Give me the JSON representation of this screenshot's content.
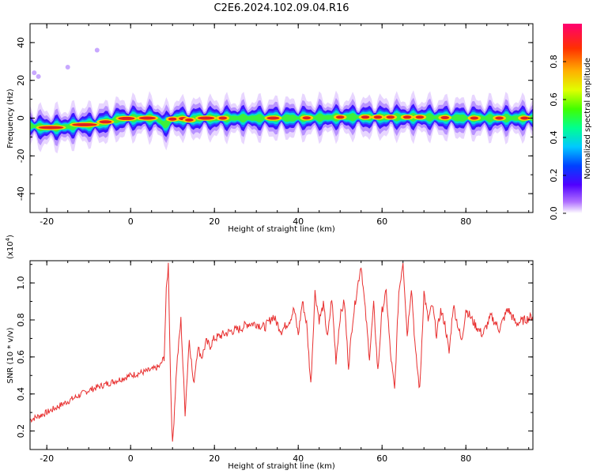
{
  "title": "C2E6.2024.102.09.04.R16",
  "colors": {
    "snr_line": "#e83030",
    "ridge": "#dd2020"
  },
  "chart_data": [
    {
      "type": "heatmap",
      "xlabel": "Height of straight line (km)",
      "ylabel": "Frequency (Hz)",
      "xlim": [
        -24,
        96
      ],
      "ylim": [
        -50,
        50
      ],
      "xticks": [
        "-20",
        "0",
        "20",
        "40",
        "60",
        "80"
      ],
      "yticks": [
        "-40",
        "-20",
        "0",
        "20",
        "40"
      ],
      "ridge": {
        "x": [
          -24,
          -21,
          -18,
          -15,
          -12,
          -9,
          -6,
          -3,
          0,
          3,
          6,
          7,
          8,
          9,
          10,
          12,
          14,
          16,
          20,
          30,
          40,
          50,
          60,
          70,
          80,
          90,
          96
        ],
        "y": [
          -4,
          -5,
          -5,
          -4.5,
          -3.5,
          -3.5,
          -2,
          -0.5,
          0,
          0,
          0,
          -1.5,
          -3.5,
          -2.5,
          -0.5,
          0,
          -1,
          0,
          0,
          0,
          0,
          0.5,
          0.5,
          0.5,
          0,
          0,
          0
        ]
      }
    },
    {
      "type": "colorbar",
      "label": "Normalized spectral amplitude",
      "range": [
        0,
        1
      ],
      "ticks": [
        "0.0",
        "0.2",
        "0.4",
        "0.6",
        "0.8"
      ]
    },
    {
      "type": "line",
      "xlabel": "Height of straight line (km)",
      "ylabel": "SNR (10 * v/v)",
      "multiplier": "(x10",
      "multiplier_exp": "4",
      "multiplier_close": ")",
      "xlim": [
        -24,
        96
      ],
      "ylim": [
        0.1,
        1.12
      ],
      "xticks": [
        "-20",
        "0",
        "20",
        "40",
        "60",
        "80"
      ],
      "yticks": [
        "0.2",
        "0.4",
        "0.6",
        "0.8",
        "1.0"
      ],
      "series": [
        {
          "x": [
            -24,
            -20,
            -15,
            -10,
            -5,
            0,
            5,
            7,
            8,
            8.5,
            9,
            9.5,
            10,
            11,
            12,
            13,
            14,
            15,
            16,
            17,
            18,
            19,
            20,
            22,
            24,
            26,
            28,
            30,
            32,
            34,
            36,
            38,
            39,
            40,
            41,
            42,
            43,
            44,
            45,
            46,
            47,
            48,
            49,
            50,
            51,
            52,
            53,
            54,
            55,
            56,
            57,
            58,
            59,
            60,
            61,
            62,
            63,
            64,
            65,
            66,
            67,
            68,
            69,
            70,
            71,
            72,
            73,
            74,
            75,
            76,
            77,
            78,
            79,
            80,
            82,
            84,
            86,
            88,
            90,
            92,
            94,
            96
          ],
          "y": [
            0.26,
            0.3,
            0.36,
            0.42,
            0.46,
            0.5,
            0.53,
            0.55,
            0.6,
            0.95,
            1.1,
            0.5,
            0.12,
            0.55,
            0.8,
            0.3,
            0.7,
            0.45,
            0.65,
            0.6,
            0.68,
            0.66,
            0.7,
            0.72,
            0.74,
            0.75,
            0.78,
            0.78,
            0.76,
            0.82,
            0.74,
            0.8,
            0.86,
            0.72,
            0.9,
            0.78,
            0.45,
            0.95,
            0.8,
            0.88,
            0.7,
            0.92,
            0.58,
            0.82,
            0.9,
            0.55,
            0.8,
            0.96,
            1.1,
            0.85,
            0.6,
            0.88,
            0.52,
            0.85,
            0.95,
            0.62,
            0.42,
            0.95,
            1.12,
            0.72,
            0.98,
            0.62,
            0.42,
            0.95,
            0.8,
            0.88,
            0.72,
            0.85,
            0.78,
            0.62,
            0.88,
            0.78,
            0.68,
            0.86,
            0.78,
            0.72,
            0.82,
            0.75,
            0.86,
            0.78,
            0.8,
            0.82
          ]
        }
      ]
    }
  ]
}
